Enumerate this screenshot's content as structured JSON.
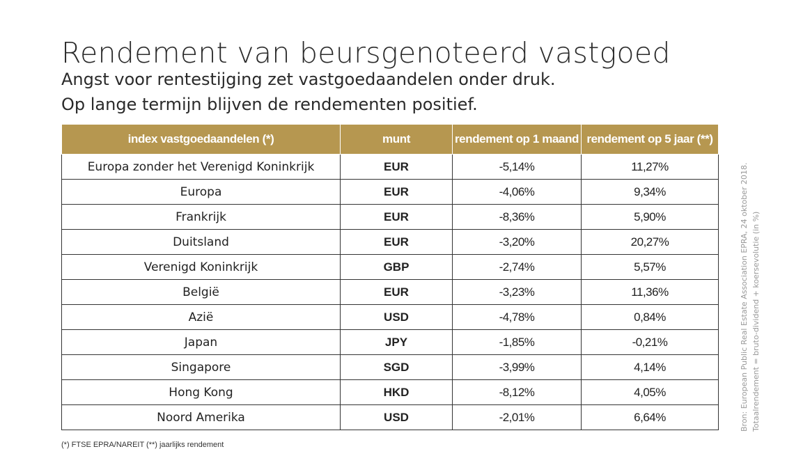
{
  "header": {
    "title": "Rendement van beursgenoteerd vastgoed",
    "subtitle_line1": "Angst voor rentestijging zet vastgoedaandelen onder druk.",
    "subtitle_line2": "Op lange termijn blijven de rendementen positief."
  },
  "table": {
    "columns": [
      "index vastgoedaandelen (*)",
      "munt",
      "rendement op 1 maand",
      "rendement op 5  jaar (**)"
    ],
    "rows": [
      {
        "index": "Europa zonder het Verenigd Koninkrijk",
        "munt": "EUR",
        "m1": "-5,14%",
        "y5": "11,27%"
      },
      {
        "index": "Europa",
        "munt": "EUR",
        "m1": "-4,06%",
        "y5": "9,34%"
      },
      {
        "index": "Frankrijk",
        "munt": "EUR",
        "m1": "-8,36%",
        "y5": "5,90%"
      },
      {
        "index": "Duitsland",
        "munt": "EUR",
        "m1": "-3,20%",
        "y5": "20,27%"
      },
      {
        "index": "Verenigd Koninkrijk",
        "munt": "GBP",
        "m1": "-2,74%",
        "y5": "5,57%"
      },
      {
        "index": "België",
        "munt": "EUR",
        "m1": "-3,23%",
        "y5": "11,36%"
      },
      {
        "index": "Azië",
        "munt": "USD",
        "m1": "-4,78%",
        "y5": "0,84%"
      },
      {
        "index": "Japan",
        "munt": "JPY",
        "m1": "-1,85%",
        "y5": "-0,21%"
      },
      {
        "index": "Singapore",
        "munt": "SGD",
        "m1": "-3,99%",
        "y5": "4,14%"
      },
      {
        "index": "Hong Kong",
        "munt": "HKD",
        "m1": "-8,12%",
        "y5": "4,05%"
      },
      {
        "index": "Noord Amerika",
        "munt": "USD",
        "m1": "-2,01%",
        "y5": "6,64%"
      }
    ]
  },
  "footnote": "(*) FTSE EPRA/NAREIT (**) jaarlijks rendement",
  "source": {
    "line1": "Bron: European Public Real Estate Association EPRA, 24 oktober 2018.",
    "line2": "Totaalrendement = bruto-dividend + koersevolutie (in %)"
  },
  "colors": {
    "header_gold": "#b69750",
    "text_dark": "#222222",
    "source_gray": "#999999"
  }
}
